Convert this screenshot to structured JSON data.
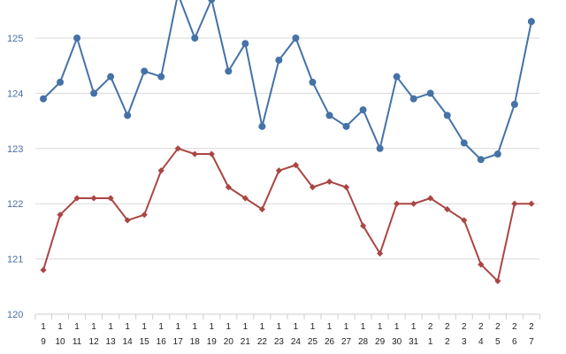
{
  "chart_data": {
    "type": "line",
    "title": "",
    "xlabel": "",
    "ylabel": "",
    "ylim": [
      120,
      125.4
    ],
    "yticks": [
      "120",
      "121",
      "122",
      "123",
      "124",
      "125"
    ],
    "grid": true,
    "categories": [
      {
        "top": "1",
        "bottom": "9"
      },
      {
        "top": "1",
        "bottom": "10"
      },
      {
        "top": "1",
        "bottom": "11"
      },
      {
        "top": "1",
        "bottom": "12"
      },
      {
        "top": "1",
        "bottom": "13"
      },
      {
        "top": "1",
        "bottom": "14"
      },
      {
        "top": "1",
        "bottom": "15"
      },
      {
        "top": "1",
        "bottom": "16"
      },
      {
        "top": "1",
        "bottom": "17"
      },
      {
        "top": "1",
        "bottom": "18"
      },
      {
        "top": "1",
        "bottom": "19"
      },
      {
        "top": "1",
        "bottom": "20"
      },
      {
        "top": "1",
        "bottom": "21"
      },
      {
        "top": "1",
        "bottom": "22"
      },
      {
        "top": "1",
        "bottom": "23"
      },
      {
        "top": "1",
        "bottom": "24"
      },
      {
        "top": "1",
        "bottom": "25"
      },
      {
        "top": "1",
        "bottom": "26"
      },
      {
        "top": "1",
        "bottom": "27"
      },
      {
        "top": "1",
        "bottom": "28"
      },
      {
        "top": "1",
        "bottom": "29"
      },
      {
        "top": "1",
        "bottom": "30"
      },
      {
        "top": "1",
        "bottom": "31"
      },
      {
        "top": "2",
        "bottom": "1"
      },
      {
        "top": "2",
        "bottom": "2"
      },
      {
        "top": "2",
        "bottom": "3"
      },
      {
        "top": "2",
        "bottom": "4"
      },
      {
        "top": "2",
        "bottom": "5"
      },
      {
        "top": "2",
        "bottom": "6"
      },
      {
        "top": "2",
        "bottom": "7"
      }
    ],
    "series": [
      {
        "color": "#4572a7",
        "marker": "circle",
        "values": [
          123.9,
          124.2,
          125.0,
          124.0,
          124.3,
          123.6,
          124.4,
          124.3,
          125.8,
          125.0,
          125.7,
          124.4,
          124.9,
          123.4,
          124.6,
          125.0,
          124.2,
          123.6,
          123.4,
          123.7,
          123.0,
          124.3,
          123.9,
          124.0,
          123.6,
          123.1,
          122.8,
          122.9,
          123.8,
          125.3
        ]
      },
      {
        "color": "#aa4643",
        "marker": "diamond",
        "values": [
          120.8,
          121.8,
          122.1,
          122.1,
          122.1,
          121.7,
          121.8,
          122.6,
          123.0,
          122.9,
          122.9,
          122.3,
          122.1,
          121.9,
          122.6,
          122.7,
          122.3,
          122.4,
          122.3,
          121.6,
          121.1,
          122.0,
          122.0,
          122.1,
          121.9,
          121.7,
          120.9,
          120.6,
          122.0,
          122.0
        ]
      }
    ]
  }
}
